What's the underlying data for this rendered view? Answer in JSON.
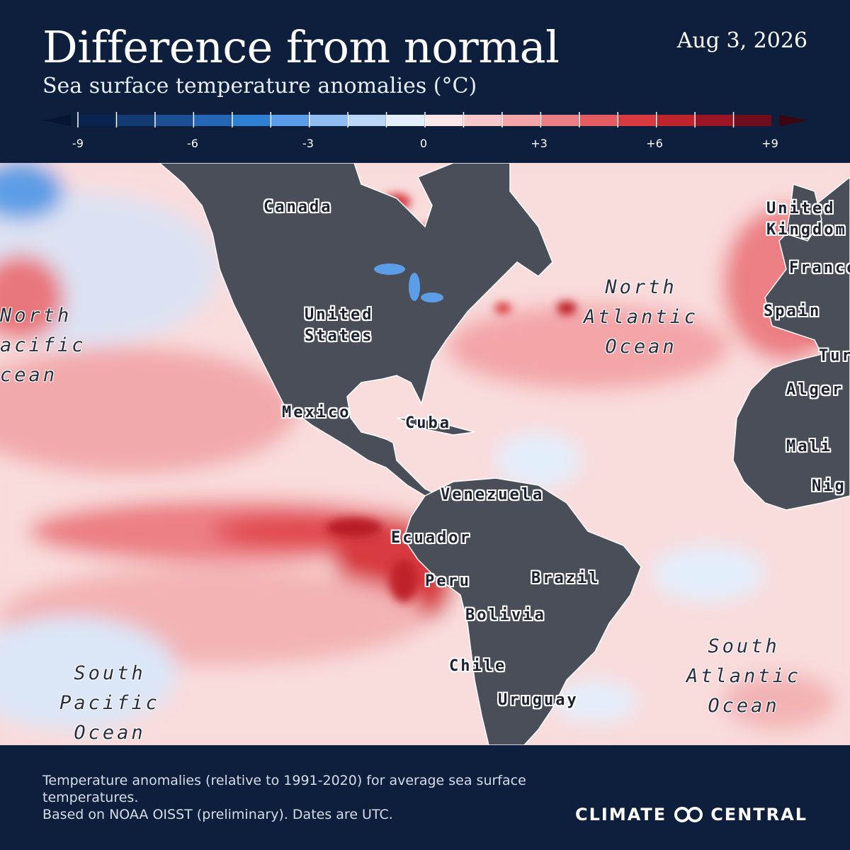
{
  "header": {
    "title": "Difference from normal",
    "subtitle": "Sea surface temperature anomalies (°C)",
    "date": "Aug 3, 2026"
  },
  "legend": {
    "ticks": [
      "-9",
      "-6",
      "-3",
      "0",
      "+3",
      "+6",
      "+9"
    ],
    "colors": [
      "#0a2450",
      "#143a73",
      "#1c4f94",
      "#2566b5",
      "#2f7fd3",
      "#5b9de6",
      "#8fbdf0",
      "#bcd7f6",
      "#e3eefb",
      "#fde7e8",
      "#f8c7c9",
      "#f3a5a8",
      "#ec7f84",
      "#e45b61",
      "#d83a40",
      "#c0242b",
      "#9b1522",
      "#6e0d1b"
    ]
  },
  "map": {
    "countries": {
      "canada": "Canada",
      "united_states": "United States",
      "mexico": "Mexico",
      "cuba": "Cuba",
      "venezuela": "Venezuela",
      "ecuador": "Ecuador",
      "peru": "Peru",
      "brazil": "Brazil",
      "bolivia": "Bolivia",
      "chile": "Chile",
      "uruguay": "Uruguay",
      "united_kingdom": "United Kingdom",
      "france": "France",
      "spain": "Spain",
      "turkey": "Tur",
      "algeria": "Alger",
      "mali": "Mali",
      "niger": "Nig"
    },
    "oceans": {
      "north_pacific": [
        "North",
        "acific",
        "cean"
      ],
      "north_atlantic": [
        "North",
        "Atlantic",
        "Ocean"
      ],
      "south_pacific": [
        "South",
        "Pacific",
        "Ocean"
      ],
      "south_atlantic": [
        "South",
        "Atlantic",
        "Ocean"
      ]
    },
    "land_color": "#4a4e58",
    "warm_color": "#e04a4f",
    "cool_color": "#cfe0f6"
  },
  "footer": {
    "note_line1": "Temperature anomalies (relative to 1991-2020) for average sea surface temperatures.",
    "note_line2": "Based on NOAA OISST (preliminary). Dates are UTC.",
    "brand_left": "CLIMATE",
    "brand_right": "CENTRAL"
  }
}
